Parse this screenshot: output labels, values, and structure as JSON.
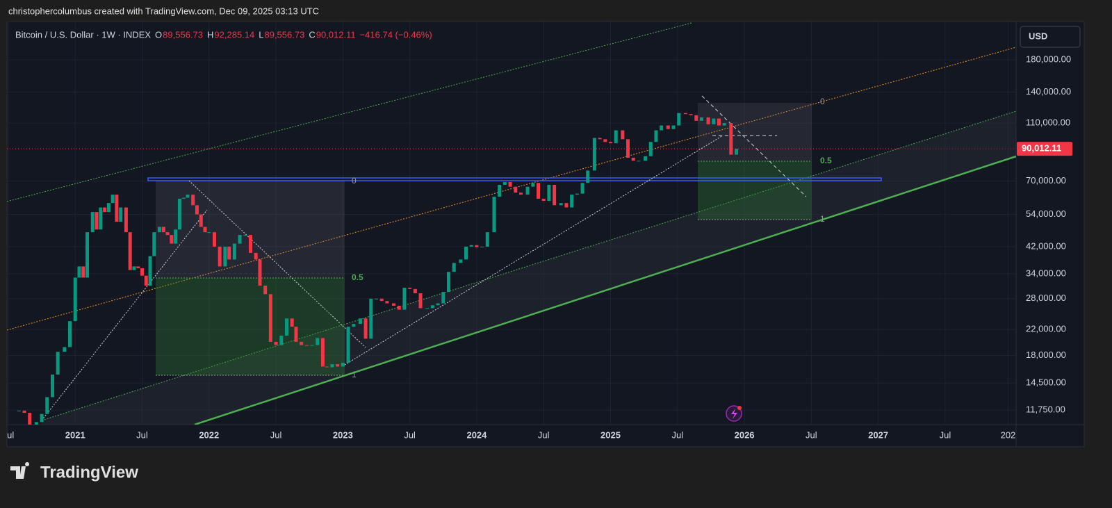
{
  "header": {
    "credit": "christophercolumbus created with TradingView.com, Dec 09, 2025 03:13 UTC",
    "currency": "USD",
    "brand": "TradingView"
  },
  "chart_data": {
    "type": "candlestick",
    "title": "Bitcoin / U.S. Dollar · 1W · INDEX",
    "ohlc": [
      {
        "key": "O",
        "value": "89,556.73"
      },
      {
        "key": "H",
        "value": "92,285.14"
      },
      {
        "key": "L",
        "value": "89,556.73"
      },
      {
        "key": "C",
        "value": "90,012.11"
      }
    ],
    "change": "−416.74 (−0.46%)",
    "up_color": "#089981",
    "down_color": "#f23645",
    "x": [
      2020.58,
      2020.62,
      2020.66,
      2020.71,
      2020.75,
      2020.79,
      2020.83,
      2020.87,
      2020.92,
      2020.96,
      2021.0,
      2021.03,
      2021.06,
      2021.09,
      2021.13,
      2021.16,
      2021.19,
      2021.22,
      2021.25,
      2021.28,
      2021.31,
      2021.34,
      2021.38,
      2021.41,
      2021.44,
      2021.47,
      2021.5,
      2021.53,
      2021.56,
      2021.59,
      2021.63,
      2021.66,
      2021.69,
      2021.72,
      2021.75,
      2021.78,
      2021.81,
      2021.84,
      2021.88,
      2021.91,
      2021.94,
      2021.97,
      2022.0,
      2022.04,
      2022.08,
      2022.12,
      2022.15,
      2022.19,
      2022.23,
      2022.27,
      2022.31,
      2022.35,
      2022.38,
      2022.42,
      2022.46,
      2022.5,
      2022.54,
      2022.58,
      2022.62,
      2022.65,
      2022.69,
      2022.73,
      2022.77,
      2022.81,
      2022.85,
      2022.88,
      2022.92,
      2022.96,
      2023.0,
      2023.04,
      2023.08,
      2023.13,
      2023.17,
      2023.21,
      2023.25,
      2023.29,
      2023.33,
      2023.38,
      2023.42,
      2023.46,
      2023.5,
      2023.54,
      2023.58,
      2023.63,
      2023.67,
      2023.71,
      2023.75,
      2023.79,
      2023.83,
      2023.88,
      2023.92,
      2023.96,
      2024.0,
      2024.04,
      2024.08,
      2024.13,
      2024.17,
      2024.21,
      2024.25,
      2024.29,
      2024.33,
      2024.38,
      2024.42,
      2024.46,
      2024.5,
      2024.54,
      2024.58,
      2024.63,
      2024.67,
      2024.71,
      2024.75,
      2024.79,
      2024.83,
      2024.88,
      2024.92,
      2024.96,
      2025.0,
      2025.04,
      2025.09,
      2025.13,
      2025.17,
      2025.21,
      2025.26,
      2025.3,
      2025.34,
      2025.38,
      2025.43,
      2025.47,
      2025.51,
      2025.56,
      2025.6,
      2025.64,
      2025.68,
      2025.73,
      2025.77,
      2025.81,
      2025.85,
      2025.9,
      2025.94
    ],
    "values": [
      11700,
      11500,
      10300,
      10700,
      11400,
      13000,
      15500,
      18500,
      19200,
      23500,
      33000,
      36000,
      33000,
      47000,
      55000,
      48000,
      57000,
      55000,
      59000,
      63000,
      51000,
      57000,
      47000,
      35000,
      36000,
      35500,
      33500,
      31000,
      39000,
      47000,
      49000,
      47000,
      46000,
      43000,
      48000,
      61000,
      61500,
      63000,
      58000,
      54000,
      49000,
      47000,
      47000,
      42000,
      36000,
      42000,
      38000,
      43000,
      46000,
      46000,
      40000,
      38000,
      31000,
      29000,
      20000,
      19500,
      21000,
      24000,
      22500,
      20000,
      19500,
      19400,
      19500,
      20600,
      16500,
      16400,
      16800,
      16500,
      17000,
      22500,
      23000,
      24000,
      20500,
      28000,
      28000,
      27500,
      27000,
      26500,
      25700,
      30500,
      30200,
      29200,
      26000,
      26000,
      26600,
      27000,
      29500,
      34500,
      37000,
      38000,
      42000,
      42500,
      41800,
      42000,
      47000,
      62000,
      68000,
      69500,
      67000,
      64000,
      63000,
      67000,
      69000,
      61000,
      60000,
      68000,
      58000,
      59000,
      57000,
      63000,
      63500,
      69000,
      76000,
      98000,
      97000,
      95000,
      94000,
      104000,
      97000,
      84000,
      82000,
      82000,
      85000,
      95000,
      104000,
      108000,
      105000,
      108000,
      119000,
      118000,
      117000,
      112000,
      115000,
      109000,
      114000,
      108000,
      110000,
      86000,
      90012.11
    ],
    "xlim": [
      2020.49,
      2028.03
    ],
    "xticks": [
      {
        "value": 2020.5,
        "label": "Jul"
      },
      2021,
      {
        "value": 2021.5,
        "label": "Jul"
      },
      2022,
      {
        "value": 2022.5,
        "label": "Jul"
      },
      2023,
      {
        "value": 2023.5,
        "label": "Jul"
      },
      2024,
      {
        "value": 2024.5,
        "label": "Jul"
      },
      2025,
      {
        "value": 2025.5,
        "label": "Jul"
      },
      2026,
      {
        "value": 2026.5,
        "label": "Jul"
      },
      2027,
      {
        "value": 2027.5,
        "label": "Jul"
      },
      {
        "value": 2027.97,
        "label": "202"
      }
    ],
    "ylim": [
      10550,
      235000
    ],
    "log_scale": true,
    "yticks": [
      {
        "value": 11750,
        "label": "11,750.00"
      },
      {
        "value": 14500,
        "label": "14,500.00"
      },
      {
        "value": 18000,
        "label": "18,000.00"
      },
      {
        "value": 22000,
        "label": "22,000.00"
      },
      {
        "value": 28000,
        "label": "28,000.00"
      },
      {
        "value": 34000,
        "label": "34,000.00"
      },
      {
        "value": 42000,
        "label": "42,000.00"
      },
      {
        "value": 54000,
        "label": "54,000.00"
      },
      {
        "value": 70000,
        "label": "70,000.00"
      },
      {
        "value": 110000,
        "label": "110,000.00"
      },
      {
        "value": 140000,
        "label": "140,000.00"
      },
      {
        "value": 180000,
        "label": "180,000.00"
      }
    ],
    "last_price": {
      "value": 90012.11,
      "label": "90,012.11",
      "color": "#f23645"
    },
    "grid": true,
    "annotations": [
      "0",
      "0.5",
      "1",
      "0",
      "0.5",
      "1"
    ]
  }
}
